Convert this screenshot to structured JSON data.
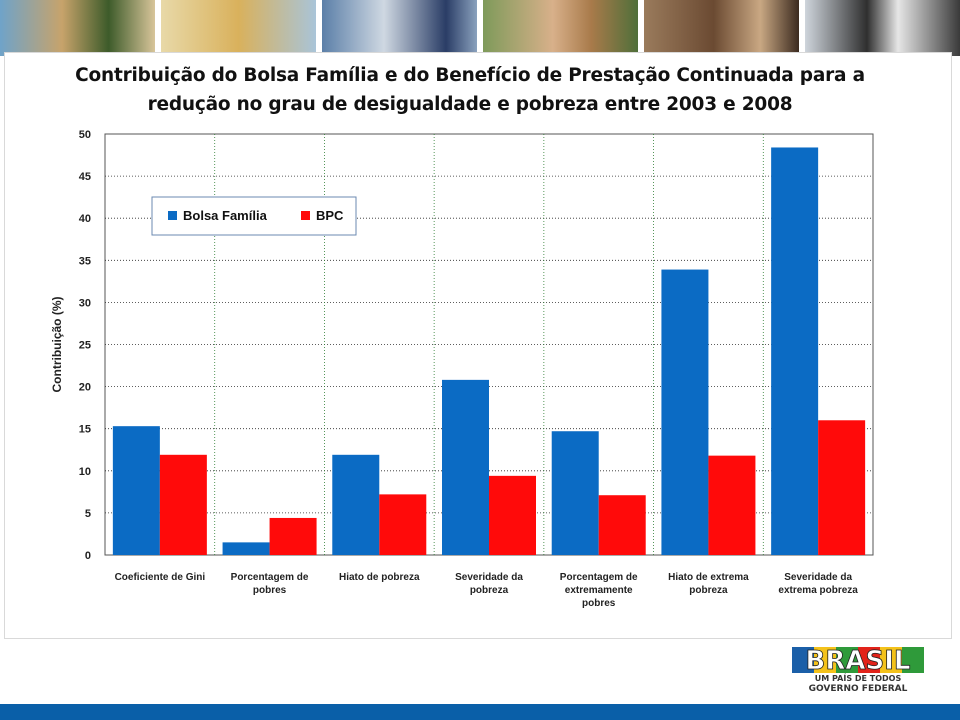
{
  "header": {
    "photos": [
      "children-photo",
      "classroom-photo",
      "school-photo",
      "girl-photo",
      "students-photo",
      "cow-photo"
    ]
  },
  "chart_data": {
    "type": "bar",
    "title_line1": "Contribuição do Bolsa Família e do Benefício de Prestação Continuada para a",
    "title_line2": "redução no grau de desigualdade e pobreza entre 2003 e 2008",
    "xlabel": "",
    "ylabel": "Contribuição (%)",
    "ylim": [
      0,
      50
    ],
    "yticks": [
      0,
      5,
      10,
      15,
      20,
      25,
      30,
      35,
      40,
      45,
      50
    ],
    "grid": true,
    "legend_position": "top-left",
    "categories": [
      [
        "Coeficiente de Gini"
      ],
      [
        "Porcentagem de",
        "pobres"
      ],
      [
        "Hiato de pobreza"
      ],
      [
        "Severidade da",
        "pobreza"
      ],
      [
        "Porcentagem de",
        "extremamente",
        "pobres"
      ],
      [
        "Hiato de extrema",
        "pobreza"
      ],
      [
        "Severidade da",
        "extrema pobreza"
      ]
    ],
    "series": [
      {
        "name": "Bolsa Família",
        "color": "#0b6bc4",
        "values": [
          15.3,
          1.5,
          11.9,
          20.8,
          14.7,
          33.9,
          48.4
        ]
      },
      {
        "name": "BPC",
        "color": "#ff0a0a",
        "values": [
          11.9,
          4.4,
          7.2,
          9.4,
          7.1,
          11.8,
          16.0
        ]
      }
    ]
  },
  "logo": {
    "text": "BRASIL",
    "tagline": "UM PAÍS DE TODOS",
    "subtitle": "GOVERNO FEDERAL"
  }
}
